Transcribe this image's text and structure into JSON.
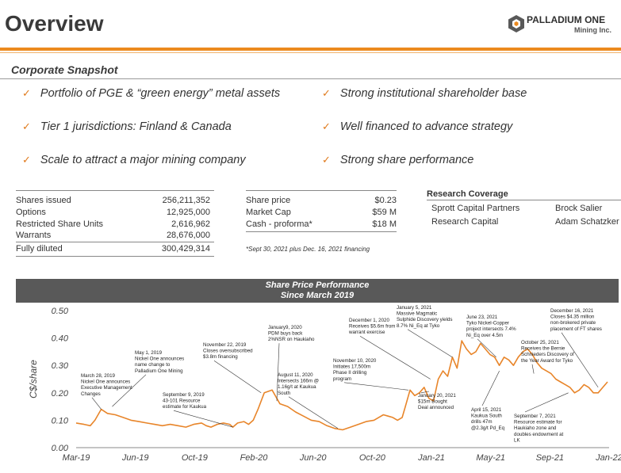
{
  "page_title": "Overview",
  "logo": {
    "name": "PALLADIUM ONE",
    "sub": "Mining Inc."
  },
  "section": "Corporate Snapshot",
  "bullets_left": [
    "Portfolio of PGE & “green energy” metal assets",
    "Tier 1 jurisdictions: Finland & Canada",
    "Scale to attract a major mining company"
  ],
  "bullets_right": [
    "Strong institutional shareholder base",
    "Well financed to advance strategy",
    "Strong share performance"
  ],
  "share_table": [
    {
      "label": "Shares issued",
      "value": "256,211,352"
    },
    {
      "label": "Options",
      "value": "12,925,000"
    },
    {
      "label": "Restricted Share Units",
      "value": "2,616,962"
    },
    {
      "label": "Warrants",
      "value": "28,676,000"
    }
  ],
  "fully_diluted": {
    "label": "Fully diluted",
    "value": "300,429,314"
  },
  "market_table": [
    {
      "label": "Share price",
      "value": "$0.23"
    },
    {
      "label": "Market Cap",
      "value": "$59  M"
    },
    {
      "label": "Cash - proforma*",
      "value": "$18  M"
    }
  ],
  "market_footnote": "*Sept 30, 2021 plus Dec. 16, 2021 financing",
  "research": {
    "title": "Research Coverage",
    "rows": [
      {
        "firm": "Sprott Capital Partners",
        "analyst": "Brock Salier"
      },
      {
        "firm": "Research Capital",
        "analyst": "Adam Schatzker"
      }
    ]
  },
  "colors": {
    "accent": "#ec8a1e",
    "line": "#e8852a",
    "band": "#595959"
  },
  "chart_data": {
    "type": "line",
    "title": "Share Price Performance",
    "subtitle": "Since March 2019",
    "ylabel": "C$/share",
    "ylim": [
      0,
      0.5
    ],
    "y_ticks": [
      "0.00",
      "0.10",
      "0.20",
      "0.30",
      "0.40",
      "0.50"
    ],
    "x_ticks": [
      "Mar-19",
      "Jun-19",
      "Oct-19",
      "Feb-20",
      "Jun-20",
      "Oct-20",
      "Jan-21",
      "May-21",
      "Sep-21",
      "Jan-22"
    ],
    "x_range": [
      0,
      34
    ],
    "series": [
      {
        "name": "Share price",
        "x": [
          0,
          0.5,
          0.9,
          1.2,
          1.6,
          2,
          2.5,
          3,
          3.5,
          4,
          4.5,
          5,
          5.5,
          6,
          6.5,
          7,
          7.5,
          8,
          8.3,
          8.6,
          9,
          9.4,
          9.8,
          10,
          10.3,
          10.7,
          11,
          11.3,
          11.6,
          12,
          12.5,
          13,
          13.5,
          14,
          14.5,
          15,
          15.5,
          16,
          16.5,
          17,
          17.5,
          18,
          18.5,
          19,
          19.3,
          19.6,
          19.9,
          20.2,
          20.5,
          20.8,
          21,
          21.3,
          21.6,
          21.9,
          22.2,
          22.5,
          22.8,
          23.1,
          23.4,
          23.7,
          24,
          24.3,
          24.6,
          24.9,
          25.2,
          25.5,
          25.8,
          26.1,
          26.4,
          26.7,
          27,
          27.3,
          27.6,
          27.9,
          28.2,
          28.5,
          28.8,
          29.1,
          29.4,
          29.7,
          30,
          30.3,
          30.6,
          30.9,
          31.2,
          31.5,
          31.8,
          32.1,
          32.4,
          32.7,
          33,
          33.3,
          33.6,
          33.9
        ],
        "y": [
          0.09,
          0.085,
          0.08,
          0.1,
          0.14,
          0.125,
          0.12,
          0.11,
          0.1,
          0.095,
          0.09,
          0.085,
          0.08,
          0.085,
          0.08,
          0.075,
          0.085,
          0.09,
          0.08,
          0.075,
          0.085,
          0.09,
          0.085,
          0.075,
          0.09,
          0.095,
          0.085,
          0.1,
          0.14,
          0.2,
          0.21,
          0.16,
          0.15,
          0.13,
          0.115,
          0.1,
          0.095,
          0.08,
          0.07,
          0.065,
          0.075,
          0.085,
          0.095,
          0.1,
          0.11,
          0.12,
          0.115,
          0.11,
          0.1,
          0.11,
          0.15,
          0.21,
          0.19,
          0.2,
          0.22,
          0.18,
          0.17,
          0.25,
          0.28,
          0.26,
          0.33,
          0.29,
          0.39,
          0.36,
          0.34,
          0.35,
          0.38,
          0.36,
          0.34,
          0.33,
          0.3,
          0.33,
          0.32,
          0.3,
          0.33,
          0.35,
          0.36,
          0.34,
          0.31,
          0.29,
          0.28,
          0.27,
          0.25,
          0.24,
          0.23,
          0.22,
          0.2,
          0.21,
          0.23,
          0.22,
          0.2,
          0.2,
          0.22,
          0.24
        ]
      }
    ],
    "annotations": [
      {
        "lines": [
          "March 28, 2019",
          "Nickel One announces",
          "Executive Management",
          "Changes"
        ]
      },
      {
        "lines": [
          "May 1, 2019",
          "Nickel One announces",
          "name change to",
          "Palladium One Mining"
        ]
      },
      {
        "lines": [
          "September  9, 2019",
          "43-101 Resource",
          "estimate for Kaukua"
        ]
      },
      {
        "lines": [
          "November  22, 2019",
          "Closes oversubscribed",
          "$3.8m financing"
        ]
      },
      {
        "lines": [
          "January9, 2020",
          "PDM buys back",
          "2%NSR on Haukiaho"
        ]
      },
      {
        "lines": [
          "August 11, 2020",
          "Intersects 166m @",
          "1.16g/t at Kaukua",
          "South"
        ]
      },
      {
        "lines": [
          "November 10, 2020",
          "Initiates 17,500m",
          "Phase II drilling",
          "program"
        ]
      },
      {
        "lines": [
          "December 1, 2020",
          "Receives $5.6m from",
          "warrant exercise"
        ]
      },
      {
        "lines": [
          "January 5, 2021",
          "Massive Magmatic",
          "Sulphide Discovery yields",
          "8.7% Ni_Eq at Tyko"
        ]
      },
      {
        "lines": [
          "January 20, 2021",
          "$15m Bought",
          "Deal announced"
        ]
      },
      {
        "lines": [
          "June 23, 2021",
          "Tyko Nickel-Copper",
          "project intersects 7.4%",
          "Ni_Eq over 4.5m"
        ]
      },
      {
        "lines": [
          "April 15, 2021",
          "Kaukua South",
          "drills 47m",
          "@2.3g/t Pd_Eq"
        ]
      },
      {
        "lines": [
          "October 25, 2021",
          "Receives the Bernie",
          "Schnieders Discovery of",
          "the Year Award for Tyko"
        ]
      },
      {
        "lines": [
          "September  7, 2021",
          "Resource estimate for",
          "Haukiaho zone and",
          "doubles endowment at",
          "LK"
        ]
      },
      {
        "lines": [
          "December  16, 2021",
          "Closes $4.35 million",
          "non-brokered private",
          "placement of FT shares"
        ]
      }
    ]
  }
}
